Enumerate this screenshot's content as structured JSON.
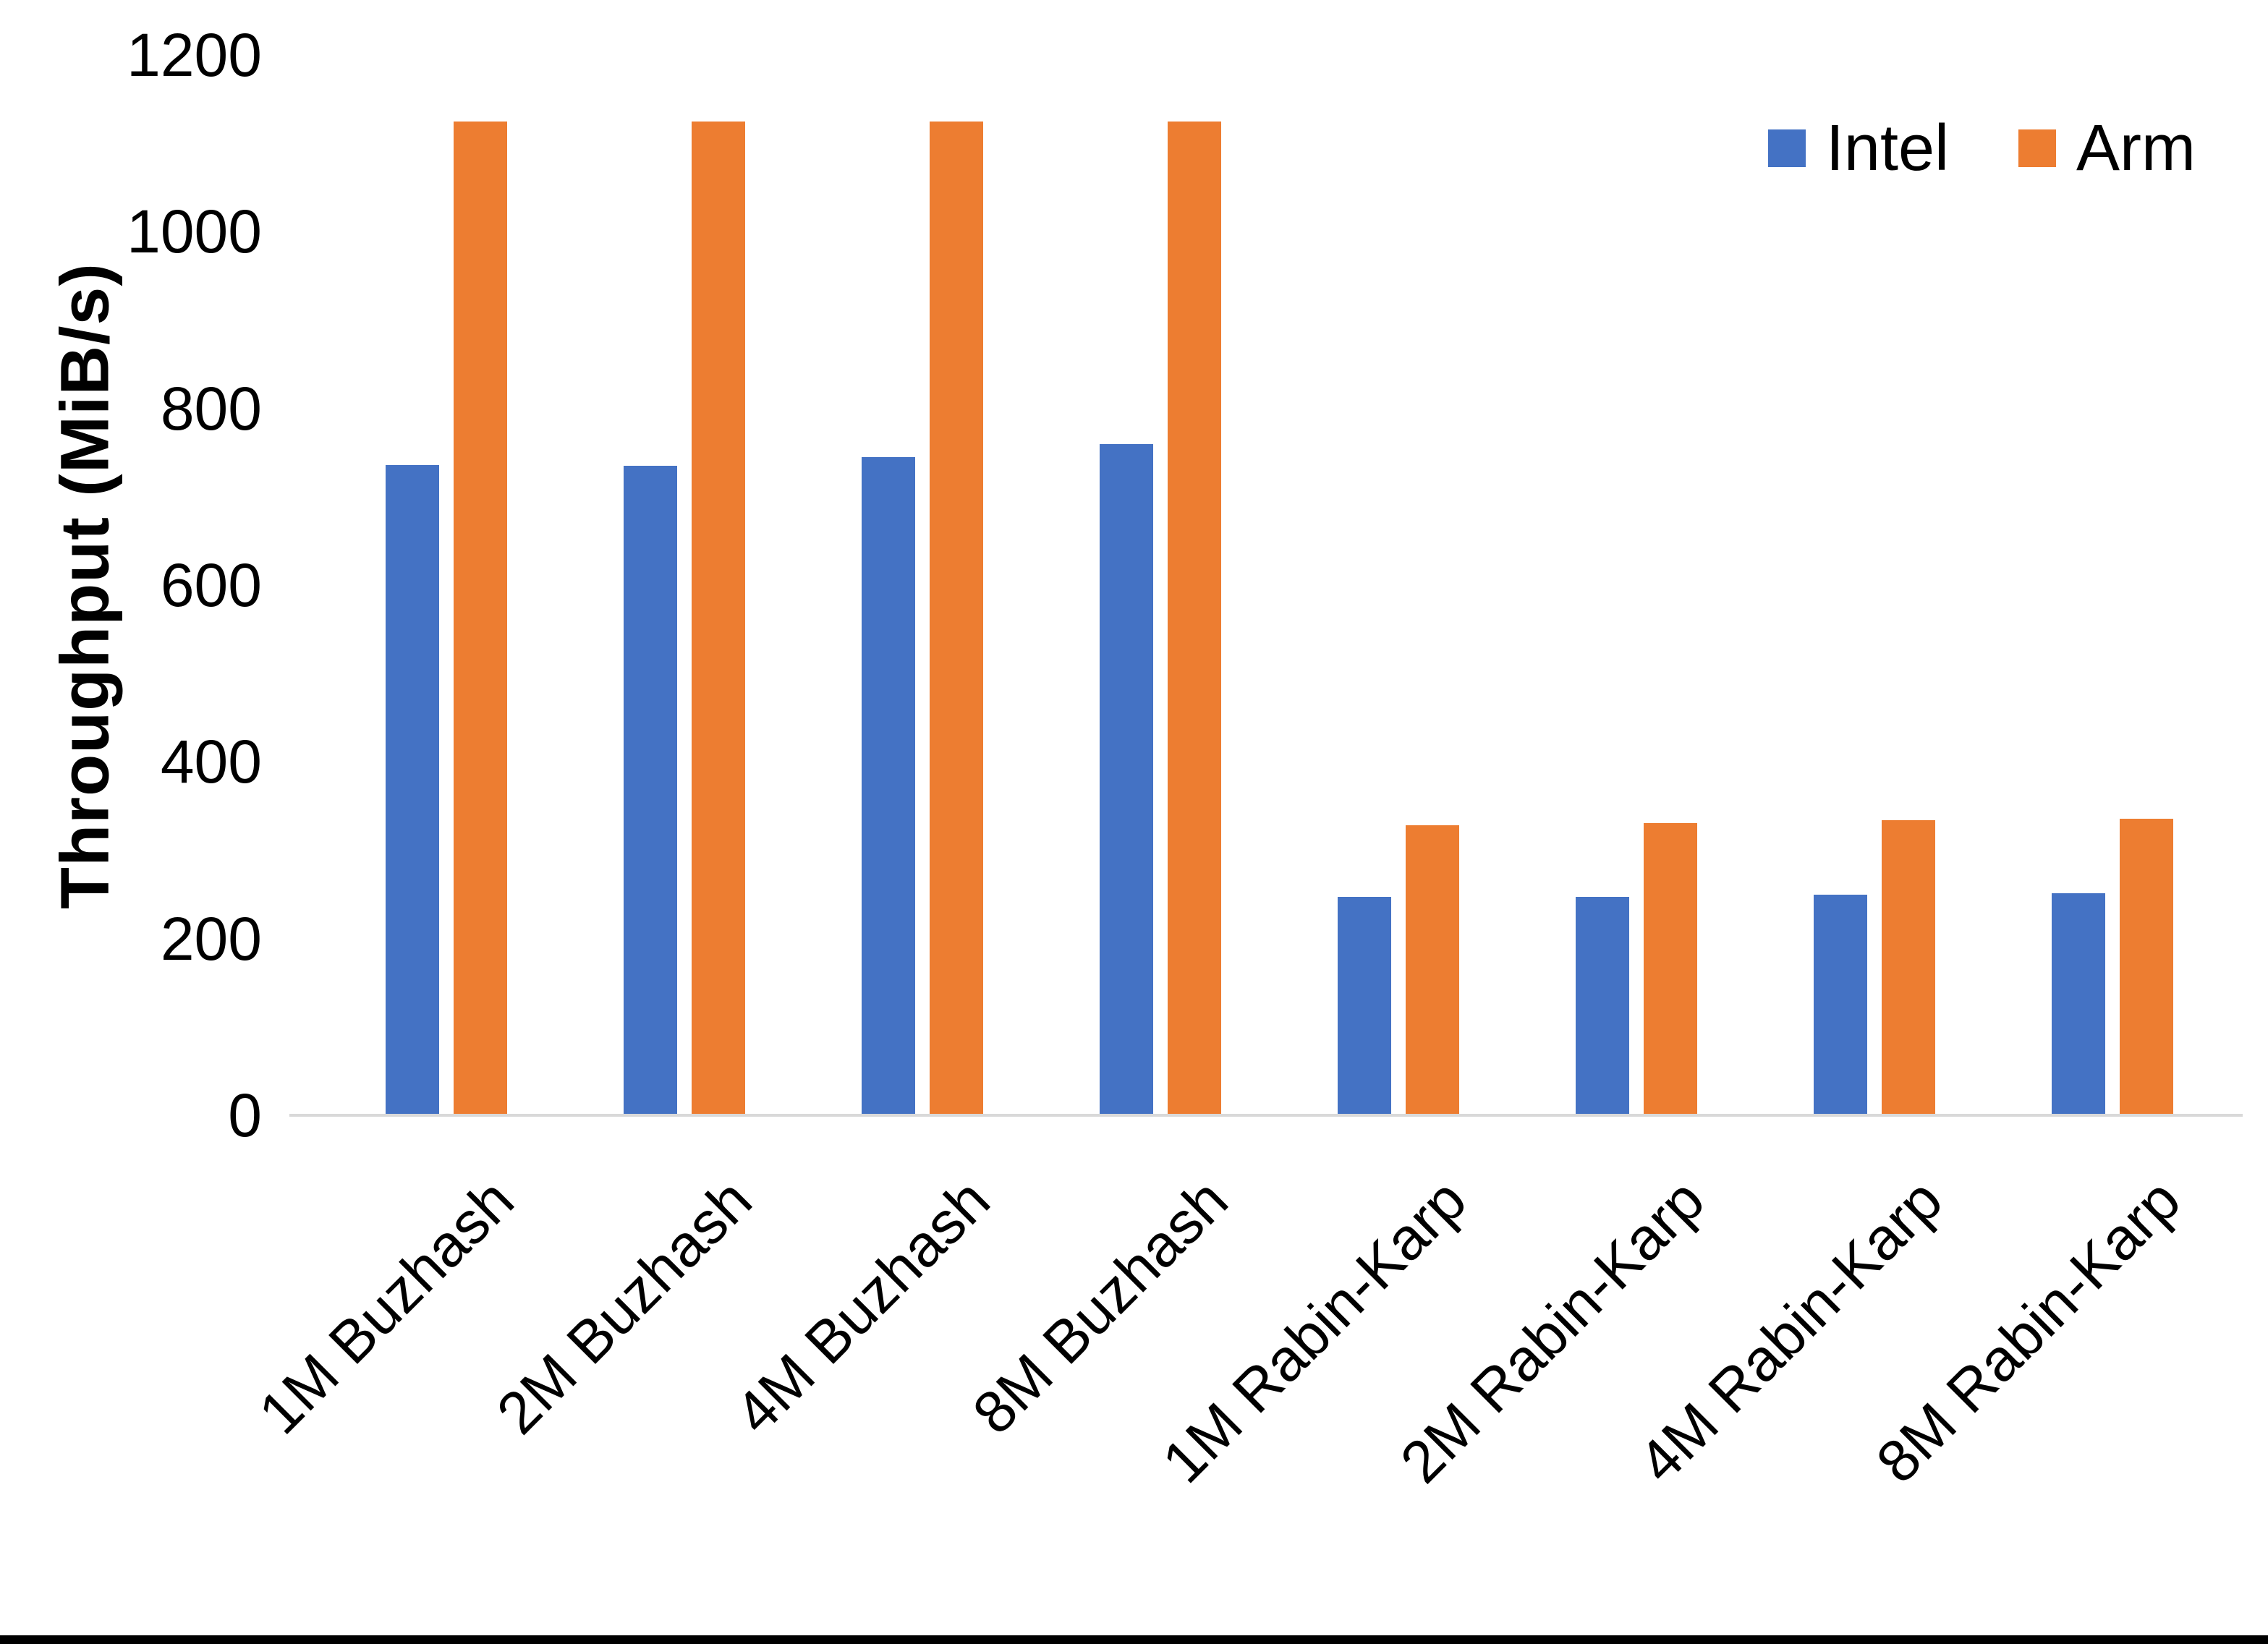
{
  "chart_data": {
    "type": "bar",
    "title": "",
    "ylabel": "Throughput (MiB/s)",
    "xlabel": "",
    "ylim": [
      0,
      1200
    ],
    "yticks": [
      0,
      200,
      400,
      600,
      800,
      1000,
      1200
    ],
    "grid": false,
    "legend_position": "top-right",
    "categories": [
      "1M Buzhash",
      "2M Buzhash",
      "4M Buzhash",
      "8M Buzhash",
      "1M Rabin-Karp",
      "2M Rabin-Karp",
      "4M Rabin-Karp",
      "8M Rabin-Karp"
    ],
    "series": [
      {
        "name": "Intel",
        "color": "#4472C4",
        "values": [
          736,
          735,
          745,
          760,
          247,
          247,
          250,
          251
        ]
      },
      {
        "name": "Arm",
        "color": "#ED7D31",
        "values": [
          1125,
          1125,
          1125,
          1125,
          328,
          331,
          334,
          336
        ]
      }
    ],
    "axis_line_color": "#D9D9D9",
    "text_color": "#000000"
  }
}
